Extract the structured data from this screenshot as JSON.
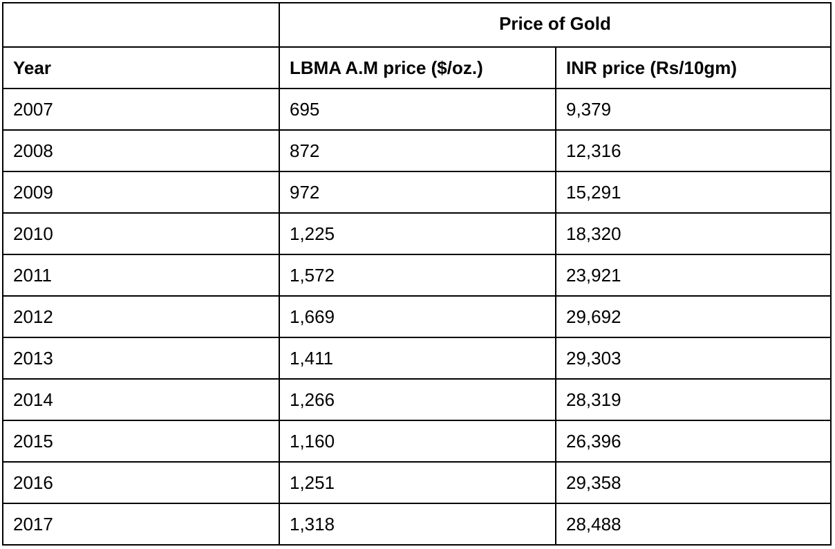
{
  "chart_data": {
    "type": "table",
    "group_header": "Price of Gold",
    "columns": [
      "Year",
      "LBMA A.M price ($/oz.)",
      "INR price (Rs/10gm)"
    ],
    "rows": [
      [
        "2007",
        "695",
        "9,379"
      ],
      [
        "2008",
        "872",
        "12,316"
      ],
      [
        "2009",
        "972",
        "15,291"
      ],
      [
        "2010",
        "1,225",
        "18,320"
      ],
      [
        "2011",
        "1,572",
        "23,921"
      ],
      [
        "2012",
        "1,669",
        "29,692"
      ],
      [
        "2013",
        "1,411",
        "29,303"
      ],
      [
        "2014",
        "1,266",
        "28,319"
      ],
      [
        "2015",
        "1,160",
        "26,396"
      ],
      [
        "2016",
        "1,251",
        "29,358"
      ],
      [
        "2017",
        "1,318",
        "28,488"
      ]
    ]
  }
}
